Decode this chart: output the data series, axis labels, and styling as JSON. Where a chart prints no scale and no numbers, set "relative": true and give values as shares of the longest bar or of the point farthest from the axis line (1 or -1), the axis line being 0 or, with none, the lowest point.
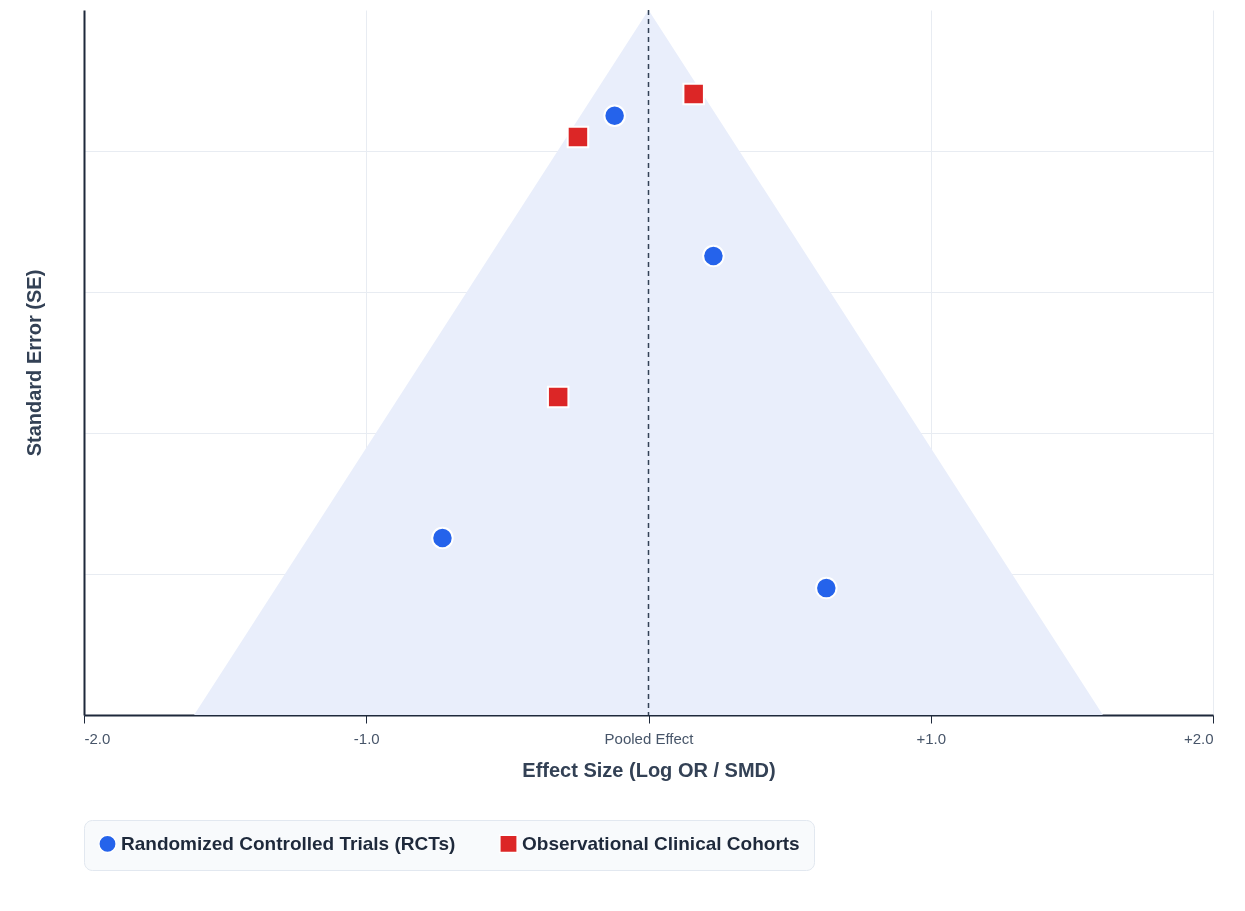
{
  "chart_data": {
    "type": "scatter",
    "relative": true,
    "xlabel": "Effect Size (Log OR / SMD)",
    "ylabel": "Standard Error (SE)",
    "xlim": [
      -2,
      2
    ],
    "xticks": [
      {
        "value": -2,
        "label": "-2.0"
      },
      {
        "value": -1,
        "label": "-1.0"
      },
      {
        "value": 0,
        "label": "Pooled Effect"
      },
      {
        "value": 1,
        "label": "+1.0"
      },
      {
        "value": 2,
        "label": "+2.0"
      }
    ],
    "grid": "x",
    "legend": "bottom",
    "ref_lines": [
      {
        "axis": "x",
        "value": 0,
        "label": null,
        "color": "#334155",
        "line_style": "dashed"
      }
    ],
    "series": [
      {
        "type": "area",
        "color": "#e9eefb",
        "x": [
          -1.61,
          0,
          1.61
        ],
        "values": [
          0,
          1,
          0
        ]
      },
      {
        "name": "Randomized Controlled Trials (RCTs)",
        "color": "#2563eb",
        "marker": "circle",
        "x": [
          -0.12,
          0.23,
          -0.73,
          0.63
        ],
        "values": [
          0.85,
          0.651,
          0.251,
          0.18
        ]
      },
      {
        "name": "Observational Clinical Cohorts",
        "color": "#dc2626",
        "marker": "square",
        "x": [
          0.16,
          -0.25,
          -0.32
        ],
        "values": [
          0.881,
          0.82,
          0.451
        ]
      }
    ]
  }
}
